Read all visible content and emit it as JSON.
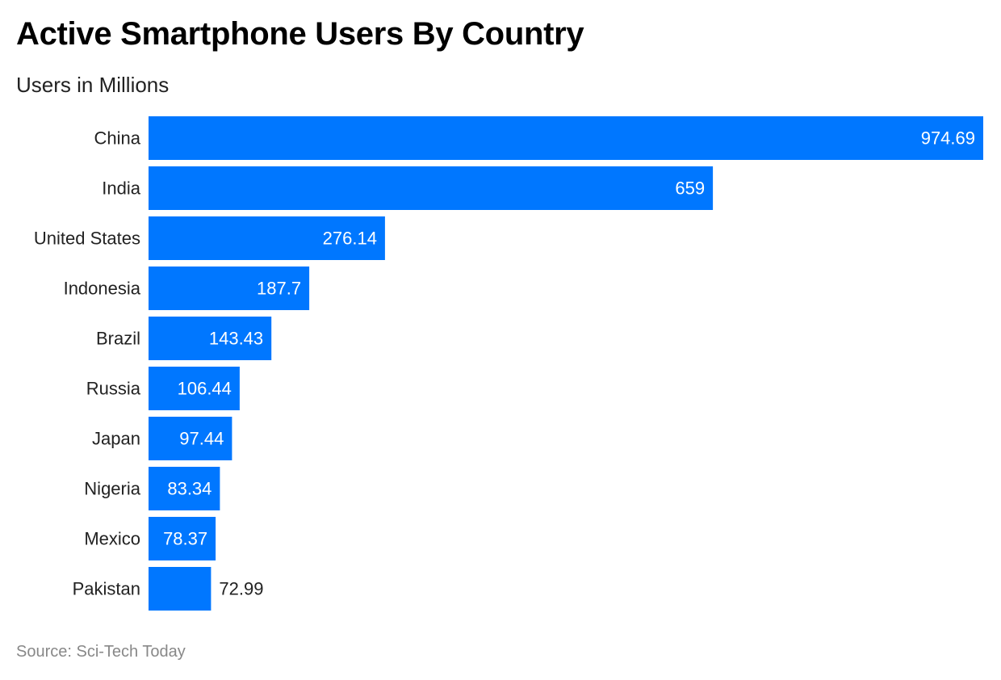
{
  "header": {
    "title": "Active Smartphone Users By Country",
    "subtitle": "Users in Millions"
  },
  "footer": {
    "source": "Source: Sci-Tech Today"
  },
  "colors": {
    "bar": "#0077ff",
    "label_inside": "#ffffff",
    "label_outside": "#222222"
  },
  "chart_data": {
    "type": "bar",
    "orientation": "horizontal",
    "title": "Active Smartphone Users By Country",
    "subtitle": "Users in Millions",
    "xlabel": "",
    "ylabel": "",
    "xlim": [
      0,
      974.69
    ],
    "grid": false,
    "legend": "none",
    "categories": [
      "China",
      "India",
      "United States",
      "Indonesia",
      "Brazil",
      "Russia",
      "Japan",
      "Nigeria",
      "Mexico",
      "Pakistan"
    ],
    "values": [
      974.69,
      659,
      276.14,
      187.7,
      143.43,
      106.44,
      97.44,
      83.34,
      78.37,
      72.99
    ],
    "value_labels": [
      "974.69",
      "659",
      "276.14",
      "187.7",
      "143.43",
      "106.44",
      "97.44",
      "83.34",
      "78.37",
      "72.99"
    ]
  }
}
